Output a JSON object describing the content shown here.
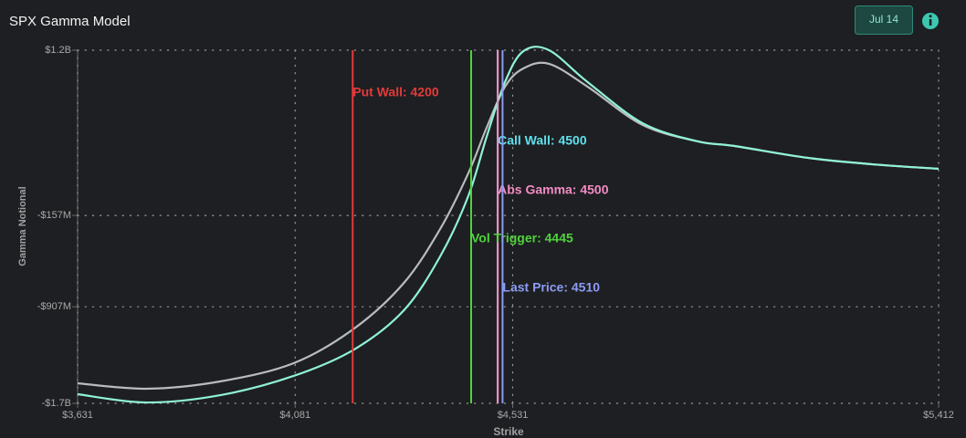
{
  "header": {
    "title": "SPX Gamma Model",
    "date_button": "Jul 14"
  },
  "chart_data": {
    "type": "line",
    "x_label": "Strike",
    "y_label": "Gamma Notional",
    "x": [
      3631,
      3774,
      3926,
      4078,
      4203,
      4306,
      4382,
      4439,
      4477,
      4515,
      4553,
      4606,
      4686,
      4800,
      4914,
      4990,
      5141,
      5275,
      5412
    ],
    "series": [
      {
        "color": "#b9bcbc",
        "values": [
          -1535000000,
          -1580000000,
          -1520000000,
          -1370000000,
          -1086000000,
          -711000000,
          -261000000,
          188000000,
          563000000,
          900000000,
          1050000000,
          1088000000,
          900000000,
          585000000,
          451000000,
          413000000,
          316000000,
          263000000,
          226000000
        ]
      },
      {
        "color": "#8ff2d6",
        "values": [
          -1625000000,
          -1693000000,
          -1633000000,
          -1475000000,
          -1258000000,
          -936000000,
          -486000000,
          1000000,
          488000000,
          938000000,
          1192000000,
          1200000000,
          938000000,
          600000000,
          451000000,
          413000000,
          316000000,
          263000000,
          226000000
        ]
      }
    ],
    "xlim": [
      3631,
      5412
    ],
    "ylim": [
      -1700000000,
      1200000000
    ],
    "xticks": [
      {
        "value": 3631,
        "label": "$3,631"
      },
      {
        "value": 4081,
        "label": "$4,081"
      },
      {
        "value": 4531,
        "label": "$4,531"
      },
      {
        "value": 5412,
        "label": "$5,412"
      }
    ],
    "yticks": [
      {
        "value": -1700000000,
        "label": "-$1.7B"
      },
      {
        "value": -907000000,
        "label": "-$907M"
      },
      {
        "value": -157000000,
        "label": "-$157M"
      },
      {
        "value": 1200000000,
        "label": "$1.2B"
      }
    ],
    "grid": true,
    "vlines": [
      {
        "value": 4200,
        "label": "Put Wall: 4200",
        "color": "#e23b3b"
      },
      {
        "value": 4500,
        "label": "Call Wall: 4500",
        "color": "#5ee0ec"
      },
      {
        "value": 4500,
        "label": "Abs Gamma: 4500",
        "color": "#f48cc4"
      },
      {
        "value": 4445,
        "label": "Vol Trigger: 4445",
        "color": "#4fd43c"
      },
      {
        "value": 4510,
        "label": "Last Price: 4510",
        "color": "#8c9cf4"
      }
    ]
  }
}
